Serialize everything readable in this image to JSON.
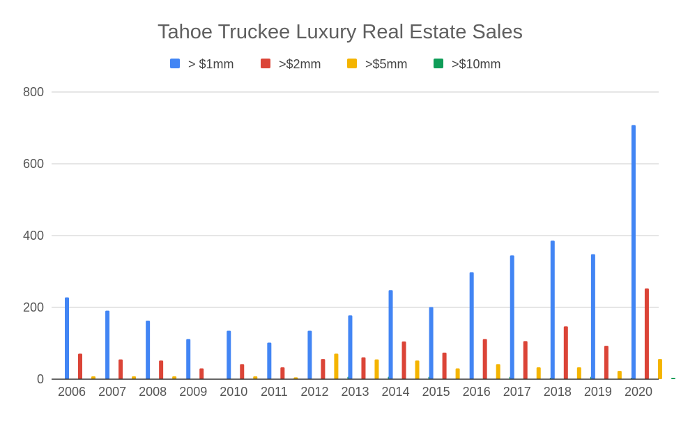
{
  "chart_data": {
    "type": "bar",
    "title": "Tahoe Truckee Luxury Real Estate Sales",
    "xlabel": "",
    "ylabel": "",
    "ylim": [
      0,
      800
    ],
    "yticks": [
      "0",
      "200",
      "400",
      "600",
      "800"
    ],
    "grid": true,
    "legend_position": "top",
    "categories": [
      "2006",
      "2007",
      "2008",
      "2009",
      "2010",
      "2011",
      "2012",
      "2013",
      "2014",
      "2015",
      "2016",
      "2017",
      "2018",
      "2019",
      "2020"
    ],
    "series": [
      {
        "name": "> $1mm",
        "color": "#4285f4",
        "values": [
          228,
          191,
          163,
          112,
          135,
          102,
          135,
          178,
          248,
          201,
          298,
          345,
          386,
          348,
          708
        ]
      },
      {
        "name": ">$2mm",
        "color": "#db4437",
        "values": [
          71,
          55,
          52,
          30,
          42,
          33,
          56,
          61,
          105,
          74,
          112,
          106,
          147,
          93,
          253
        ]
      },
      {
        "name": ">$5mm",
        "color": "#f4b400",
        "values": [
          8,
          8,
          8,
          0,
          8,
          5,
          71,
          55,
          52,
          30,
          42,
          33,
          33,
          23,
          56
        ]
      },
      {
        "name": ">$10mm",
        "color": "#0f9d58",
        "values": [
          0,
          0,
          0,
          0,
          0,
          0,
          7,
          7,
          7,
          0,
          7,
          4,
          7,
          4,
          4
        ]
      }
    ]
  }
}
